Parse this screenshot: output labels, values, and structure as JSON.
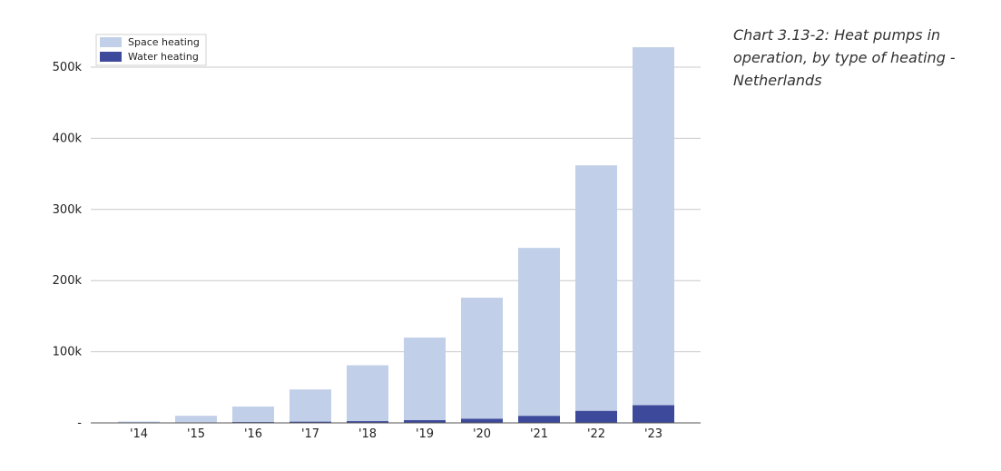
{
  "caption": "Chart 3.13-2: Heat pumps in operation, by type of heating - Netherlands",
  "chart_data": {
    "type": "bar",
    "stacked": true,
    "title": "",
    "xlabel": "",
    "ylabel": "",
    "categories": [
      "'14",
      "'15",
      "'16",
      "'17",
      "'18",
      "'19",
      "'20",
      "'21",
      "'22",
      "'23"
    ],
    "series": [
      {
        "name": "Water heating",
        "color": "#3d4a9b",
        "values": [
          500,
          800,
          1200,
          1800,
          2500,
          4000,
          6000,
          10000,
          17000,
          25000
        ]
      },
      {
        "name": "Space heating",
        "color": "#c2cfe8",
        "values": [
          1500,
          9200,
          21800,
          45200,
          78500,
          116000,
          170000,
          236000,
          345000,
          503000
        ]
      }
    ],
    "ylim": [
      0,
      550000
    ],
    "yticks": [
      0,
      100000,
      200000,
      300000,
      400000,
      500000
    ],
    "ytick_labels": [
      "-",
      "100k",
      "200k",
      "300k",
      "400k",
      "500k"
    ],
    "legend_position": "top-left",
    "grid": true
  }
}
